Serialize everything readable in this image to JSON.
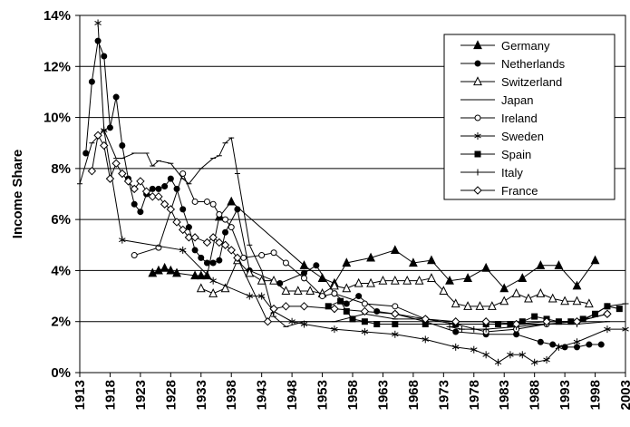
{
  "chart_data": {
    "type": "line",
    "y_label": "Income Share",
    "xlim": [
      1913,
      2003
    ],
    "xticks": [
      1913,
      1918,
      1923,
      1928,
      1933,
      1938,
      1943,
      1948,
      1953,
      1958,
      1963,
      1968,
      1973,
      1978,
      1983,
      1988,
      1993,
      1998,
      2003
    ],
    "ylim": [
      0,
      14
    ],
    "yticks": [
      {
        "value": 0,
        "label": "0%"
      },
      {
        "value": 2,
        "label": "2%"
      },
      {
        "value": 4,
        "label": "4%"
      },
      {
        "value": 6,
        "label": "6%"
      },
      {
        "value": 8,
        "label": "8%"
      },
      {
        "value": 10,
        "label": "10%"
      },
      {
        "value": 12,
        "label": "12%"
      },
      {
        "value": 14,
        "label": "14%"
      }
    ],
    "grid": true,
    "legend": "upper right",
    "series": [
      {
        "name": "Germany",
        "color": "#000000",
        "marker": "triangle-filled",
        "x": [
          1925,
          1926,
          1927,
          1928,
          1929,
          1932,
          1933,
          1934,
          1936,
          1938,
          1950,
          1953,
          1955,
          1957,
          1961,
          1965,
          1968,
          1971,
          1974,
          1977,
          1980,
          1983,
          1986,
          1989,
          1992,
          1995,
          1998
        ],
        "values": [
          3.9,
          4.0,
          4.1,
          4.0,
          3.9,
          3.8,
          3.8,
          3.8,
          6.1,
          6.7,
          4.2,
          3.7,
          3.5,
          4.3,
          4.5,
          4.8,
          4.3,
          4.4,
          3.6,
          3.7,
          4.1,
          3.3,
          3.7,
          4.2,
          4.2,
          3.4,
          4.4
        ]
      },
      {
        "name": "Netherlands",
        "color": "#000000",
        "marker": "circle-filled",
        "x": [
          1914,
          1915,
          1916,
          1917,
          1918,
          1919,
          1920,
          1921,
          1922,
          1923,
          1924,
          1925,
          1926,
          1927,
          1928,
          1929,
          1930,
          1931,
          1932,
          1933,
          1934,
          1935,
          1936,
          1937,
          1939,
          1941,
          1946,
          1950,
          1952,
          1955,
          1957,
          1959,
          1962,
          1965,
          1970,
          1975,
          1980,
          1985,
          1989,
          1991,
          1993,
          1995,
          1997,
          1999
        ],
        "values": [
          8.6,
          11.4,
          13.0,
          12.4,
          9.6,
          10.8,
          8.9,
          7.6,
          6.6,
          6.3,
          7.0,
          7.2,
          7.2,
          7.3,
          7.6,
          7.2,
          6.4,
          5.7,
          4.8,
          4.5,
          4.3,
          4.3,
          4.4,
          5.5,
          6.4,
          4.0,
          3.5,
          3.9,
          4.2,
          3.1,
          2.7,
          3.0,
          2.4,
          2.3,
          2.0,
          1.6,
          1.5,
          1.5,
          1.2,
          1.1,
          1.0,
          1.0,
          1.1,
          1.1
        ]
      },
      {
        "name": "Switzerland",
        "color": "#000000",
        "marker": "triangle-open",
        "x": [
          1933,
          1935,
          1937,
          1939,
          1941,
          1943,
          1945,
          1947,
          1949,
          1951,
          1953,
          1955,
          1957,
          1959,
          1961,
          1963,
          1965,
          1967,
          1969,
          1971,
          1973,
          1975,
          1977,
          1979,
          1981,
          1983,
          1985,
          1987,
          1989,
          1991,
          1993,
          1995,
          1997
        ],
        "values": [
          3.3,
          3.1,
          3.3,
          4.4,
          3.9,
          3.6,
          3.6,
          3.2,
          3.2,
          3.2,
          3.1,
          3.4,
          3.3,
          3.5,
          3.5,
          3.6,
          3.6,
          3.6,
          3.6,
          3.7,
          3.2,
          2.7,
          2.6,
          2.6,
          2.6,
          2.8,
          3.1,
          2.9,
          3.1,
          2.9,
          2.8,
          2.8,
          2.7
        ]
      },
      {
        "name": "Japan",
        "color": "#000000",
        "marker": "dash",
        "x": [
          1913,
          1915,
          1917,
          1919,
          1920,
          1922,
          1924,
          1925,
          1926,
          1928,
          1930,
          1931,
          1933,
          1935,
          1936,
          1937,
          1938,
          1939,
          1941,
          1943,
          1945,
          1947,
          1950,
          1955,
          1960,
          1965,
          1970,
          1975,
          1980,
          1985,
          1990,
          1995,
          2000
        ],
        "values": [
          7.4,
          9.0,
          9.5,
          8.4,
          8.4,
          8.6,
          8.6,
          8.1,
          8.3,
          8.2,
          7.6,
          7.4,
          8.0,
          8.4,
          8.5,
          9.0,
          9.2,
          7.8,
          5.0,
          4.0,
          2.2,
          1.8,
          2.0,
          2.0,
          2.3,
          2.1,
          2.1,
          1.9,
          1.9,
          1.9,
          1.9,
          1.9,
          2.0
        ]
      },
      {
        "name": "Ireland",
        "color": "#000000",
        "marker": "circle-open",
        "x": [
          1922,
          1926,
          1930,
          1932,
          1934,
          1935,
          1936,
          1937,
          1938,
          1940,
          1943,
          1945,
          1947,
          1950,
          1953,
          1955,
          1960,
          1965,
          1970,
          1975,
          1980,
          1985,
          1990,
          1995,
          2000
        ],
        "values": [
          4.6,
          4.9,
          7.8,
          6.7,
          6.7,
          6.6,
          6.2,
          6.0,
          5.7,
          4.5,
          4.6,
          4.7,
          4.3,
          3.7,
          3.0,
          3.1,
          2.7,
          2.6,
          2.1,
          1.9,
          1.6,
          1.7,
          1.9,
          2.0,
          2.3
        ]
      },
      {
        "name": "Sweden",
        "color": "#000000",
        "marker": "asterisk",
        "x": [
          1916,
          1917,
          1920,
          1930,
          1935,
          1941,
          1943,
          1945,
          1948,
          1950,
          1955,
          1960,
          1965,
          1970,
          1975,
          1978,
          1980,
          1982,
          1984,
          1986,
          1988,
          1990,
          1992,
          1995,
          2000,
          2003
        ],
        "values": [
          13.7,
          9.5,
          5.2,
          4.8,
          3.6,
          3.0,
          3.0,
          2.4,
          2.0,
          1.9,
          1.7,
          1.6,
          1.5,
          1.3,
          1.0,
          0.9,
          0.7,
          0.4,
          0.7,
          0.7,
          0.4,
          0.5,
          1.0,
          1.2,
          1.7,
          1.7
        ]
      },
      {
        "name": "Spain",
        "color": "#000000",
        "marker": "square-filled",
        "x": [
          1954,
          1956,
          1957,
          1958,
          1960,
          1962,
          1965,
          1970,
          1975,
          1980,
          1982,
          1984,
          1986,
          1988,
          1990,
          1992,
          1994,
          1996,
          1998,
          2000,
          2002
        ],
        "values": [
          2.6,
          2.8,
          2.4,
          2.1,
          2.0,
          1.9,
          1.9,
          1.9,
          1.9,
          1.9,
          1.9,
          1.9,
          2.0,
          2.2,
          2.1,
          2.0,
          2.0,
          2.1,
          2.3,
          2.6,
          2.5
        ]
      },
      {
        "name": "Italy",
        "color": "#000000",
        "marker": "plus",
        "x": [
          1974,
          1976,
          1978,
          1980,
          1985,
          1990,
          1995,
          2000,
          2003
        ],
        "values": [
          1.8,
          1.7,
          1.7,
          1.7,
          1.8,
          1.9,
          1.9,
          2.6,
          2.7
        ]
      },
      {
        "name": "France",
        "color": "#000000",
        "marker": "diamond-open",
        "x": [
          1915,
          1916,
          1917,
          1918,
          1919,
          1920,
          1921,
          1922,
          1923,
          1924,
          1925,
          1926,
          1927,
          1928,
          1929,
          1930,
          1931,
          1932,
          1934,
          1935,
          1936,
          1937,
          1938,
          1939,
          1944,
          1945,
          1947,
          1950,
          1955,
          1960,
          1965,
          1970,
          1975,
          1980,
          1985,
          1990,
          1995,
          2000
        ],
        "values": [
          7.9,
          9.3,
          8.9,
          7.6,
          8.2,
          7.8,
          7.5,
          7.2,
          7.5,
          7.1,
          6.9,
          6.9,
          6.6,
          6.4,
          5.9,
          5.6,
          5.3,
          5.3,
          5.1,
          5.3,
          5.1,
          5.0,
          4.8,
          4.5,
          2.0,
          2.5,
          2.6,
          2.6,
          2.5,
          2.4,
          2.3,
          2.1,
          2.0,
          2.0,
          1.9,
          2.0,
          2.0,
          2.3
        ]
      }
    ]
  }
}
